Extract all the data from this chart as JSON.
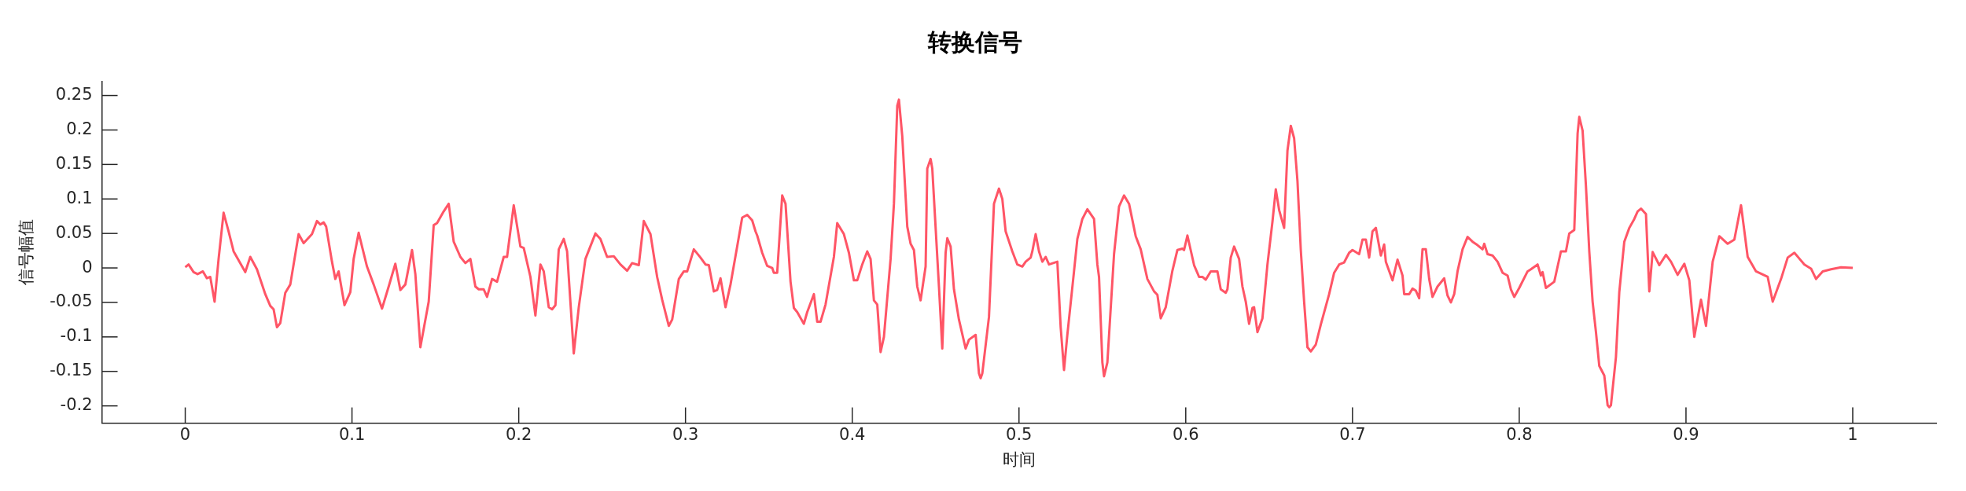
{
  "chart_data": {
    "type": "line",
    "title": "转换信号",
    "xlabel": "时间",
    "ylabel": "信号幅值",
    "xlim": [
      -0.05,
      1.05
    ],
    "xticks": [
      0,
      0.1,
      0.2,
      0.3,
      0.4,
      0.5,
      0.6,
      0.7,
      0.8,
      0.9,
      1
    ],
    "ylim": [
      -0.225,
      0.27
    ],
    "yticks": [
      -0.2,
      -0.15,
      -0.1,
      -0.05,
      0,
      0.05,
      0.1,
      0.15,
      0.2,
      0.25
    ],
    "grid": false,
    "legend": false,
    "marker": "none",
    "line_style": "solid",
    "series": [
      {
        "color": "#ff5566",
        "x": [
          0,
          0.002,
          0.005,
          0.0074,
          0.0106,
          0.013,
          0.015,
          0.0176,
          0.02,
          0.023,
          0.026,
          0.029,
          0.036,
          0.039,
          0.043,
          0.048,
          0.051,
          0.053,
          0.055,
          0.057,
          0.06,
          0.063,
          0.068,
          0.071,
          0.076,
          0.079,
          0.081,
          0.083,
          0.0845,
          0.088,
          0.09,
          0.092,
          0.0955,
          0.099,
          0.101,
          0.104,
          0.109,
          0.113,
          0.118,
          0.122,
          0.126,
          0.129,
          0.132,
          0.136,
          0.138,
          0.141,
          0.146,
          0.149,
          0.151,
          0.155,
          0.158,
          0.161,
          0.165,
          0.168,
          0.171,
          0.174,
          0.176,
          0.179,
          0.181,
          0.184,
          0.187,
          0.191,
          0.193,
          0.197,
          0.201,
          0.203,
          0.207,
          0.21,
          0.213,
          0.215,
          0.218,
          0.22,
          0.222,
          0.224,
          0.227,
          0.229,
          0.233,
          0.236,
          0.24,
          0.246,
          0.249,
          0.253,
          0.257,
          0.261,
          0.265,
          0.268,
          0.272,
          0.275,
          0.279,
          0.283,
          0.286,
          0.29,
          0.292,
          0.296,
          0.299,
          0.301,
          0.305,
          0.309,
          0.312,
          0.314,
          0.317,
          0.319,
          0.321,
          0.324,
          0.327,
          0.331,
          0.334,
          0.337,
          0.34,
          0.342,
          0.343,
          0.346,
          0.349,
          0.352,
          0.353,
          0.355,
          0.358,
          0.36,
          0.363,
          0.365,
          0.367,
          0.371,
          0.373,
          0.377,
          0.379,
          0.381,
          0.384,
          0.389,
          0.391,
          0.395,
          0.398,
          0.401,
          0.403,
          0.406,
          0.409,
          0.411,
          0.413,
          0.415,
          0.417,
          0.419,
          0.423,
          0.425,
          0.427,
          0.428,
          0.43,
          0.433,
          0.435,
          0.437,
          0.439,
          0.441,
          0.444,
          0.445,
          0.447,
          0.448,
          0.452,
          0.454,
          0.456,
          0.457,
          0.459,
          0.461,
          0.464,
          0.468,
          0.47,
          0.474,
          0.476,
          0.477,
          0.478,
          0.482,
          0.485,
          0.488,
          0.49,
          0.492,
          0.496,
          0.499,
          0.502,
          0.504,
          0.507,
          0.508,
          0.51,
          0.512,
          0.514,
          0.516,
          0.518,
          0.523,
          0.525,
          0.527,
          0.529,
          0.533,
          0.535,
          0.538,
          0.541,
          0.545,
          0.547,
          0.548,
          0.55,
          0.551,
          0.553,
          0.557,
          0.56,
          0.563,
          0.566,
          0.57,
          0.573,
          0.577,
          0.581,
          0.583,
          0.585,
          0.588,
          0.592,
          0.595,
          0.598,
          0.599,
          0.601,
          0.605,
          0.608,
          0.61,
          0.612,
          0.615,
          0.619,
          0.621,
          0.624,
          0.625,
          0.627,
          0.629,
          0.632,
          0.634,
          0.636,
          0.638,
          0.64,
          0.641,
          0.643,
          0.646,
          0.649,
          0.652,
          0.654,
          0.656,
          0.659,
          0.661,
          0.663,
          0.665,
          0.667,
          0.669,
          0.671,
          0.673,
          0.675,
          0.678,
          0.681,
          0.686,
          0.689,
          0.692,
          0.695,
          0.698,
          0.7,
          0.704,
          0.706,
          0.708,
          0.71,
          0.712,
          0.714,
          0.717,
          0.719,
          0.72,
          0.724,
          0.727,
          0.73,
          0.731,
          0.734,
          0.736,
          0.738,
          0.74,
          0.742,
          0.744,
          0.746,
          0.748,
          0.751,
          0.755,
          0.757,
          0.759,
          0.761,
          0.763,
          0.766,
          0.769,
          0.772,
          0.775,
          0.778,
          0.779,
          0.781,
          0.784,
          0.787,
          0.79,
          0.793,
          0.795,
          0.797,
          0.8,
          0.805,
          0.807,
          0.811,
          0.813,
          0.814,
          0.816,
          0.821,
          0.822,
          0.825,
          0.828,
          0.83,
          0.833,
          0.835,
          0.836,
          0.838,
          0.84,
          0.842,
          0.844,
          0.846,
          0.848,
          0.851,
          0.853,
          0.854,
          0.855,
          0.858,
          0.86,
          0.863,
          0.866,
          0.869,
          0.871,
          0.873,
          0.876,
          0.878,
          0.88,
          0.884,
          0.888,
          0.891,
          0.895,
          0.899,
          0.902,
          0.905,
          0.909,
          0.912,
          0.916,
          0.92,
          0.925,
          0.929,
          0.933,
          0.937,
          0.942,
          0.949,
          0.952,
          0.957,
          0.961,
          0.965,
          0.971,
          0.975,
          0.978,
          0.982,
          0.987,
          0.993,
          1
        ],
        "values": [
          0.001,
          0.005,
          -0.006,
          -0.009,
          -0.005,
          -0.015,
          -0.013,
          -0.049,
          0.013,
          0.08,
          0.053,
          0.024,
          -0.006,
          0.016,
          -0.002,
          -0.038,
          -0.055,
          -0.06,
          -0.086,
          -0.08,
          -0.036,
          -0.024,
          0.049,
          0.036,
          0.049,
          0.068,
          0.063,
          0.066,
          0.06,
          0.009,
          -0.016,
          -0.005,
          -0.054,
          -0.035,
          0.013,
          0.051,
          0.002,
          -0.024,
          -0.059,
          -0.027,
          0.006,
          -0.032,
          -0.024,
          0.026,
          -0.009,
          -0.115,
          -0.049,
          0.062,
          0.065,
          0.082,
          0.093,
          0.038,
          0.016,
          0.007,
          0.013,
          -0.027,
          -0.031,
          -0.031,
          -0.042,
          -0.016,
          -0.02,
          0.016,
          0.016,
          0.091,
          0.031,
          0.029,
          -0.013,
          -0.069,
          0.005,
          -0.005,
          -0.057,
          -0.06,
          -0.054,
          0.027,
          0.042,
          0.024,
          -0.124,
          -0.057,
          0.013,
          0.05,
          0.042,
          0.016,
          0.017,
          0.005,
          -0.004,
          0.007,
          0.004,
          0.068,
          0.049,
          -0.013,
          -0.046,
          -0.084,
          -0.075,
          -0.016,
          -0.005,
          -0.005,
          0.027,
          0.015,
          0.005,
          0.004,
          -0.034,
          -0.032,
          -0.015,
          -0.057,
          -0.024,
          0.031,
          0.073,
          0.077,
          0.069,
          0.053,
          0.047,
          0.022,
          0.003,
          0,
          -0.007,
          -0.007,
          0.105,
          0.093,
          -0.02,
          -0.058,
          -0.064,
          -0.081,
          -0.064,
          -0.038,
          -0.078,
          -0.078,
          -0.053,
          0.016,
          0.065,
          0.049,
          0.022,
          -0.018,
          -0.018,
          0.005,
          0.024,
          0.013,
          -0.047,
          -0.053,
          -0.122,
          -0.1,
          0.013,
          0.093,
          0.235,
          0.244,
          0.191,
          0.06,
          0.035,
          0.026,
          -0.027,
          -0.047,
          0.002,
          0.144,
          0.158,
          0.144,
          -0.027,
          -0.117,
          0.022,
          0.043,
          0.031,
          -0.031,
          -0.075,
          -0.117,
          -0.104,
          -0.097,
          -0.153,
          -0.16,
          -0.153,
          -0.071,
          0.093,
          0.115,
          0.1,
          0.053,
          0.024,
          0.005,
          0.002,
          0.009,
          0.015,
          0.024,
          0.049,
          0.024,
          0.009,
          0.016,
          0.005,
          0.009,
          -0.086,
          -0.148,
          -0.097,
          -0.005,
          0.042,
          0.071,
          0.085,
          0.071,
          0.005,
          -0.013,
          -0.137,
          -0.157,
          -0.137,
          0.02,
          0.089,
          0.105,
          0.093,
          0.046,
          0.027,
          -0.016,
          -0.034,
          -0.039,
          -0.073,
          -0.057,
          -0.004,
          0.026,
          0.028,
          0.026,
          0.047,
          0.004,
          -0.013,
          -0.013,
          -0.017,
          -0.005,
          -0.005,
          -0.031,
          -0.036,
          -0.031,
          0.015,
          0.031,
          0.013,
          -0.027,
          -0.049,
          -0.081,
          -0.058,
          -0.057,
          -0.093,
          -0.073,
          0.005,
          0.067,
          0.114,
          0.084,
          0.058,
          0.17,
          0.206,
          0.188,
          0.126,
          0.026,
          -0.049,
          -0.115,
          -0.121,
          -0.111,
          -0.082,
          -0.038,
          -0.007,
          0.005,
          0.008,
          0.022,
          0.026,
          0.02,
          0.041,
          0.041,
          0.015,
          0.053,
          0.058,
          0.018,
          0.034,
          0.009,
          -0.018,
          0.012,
          -0.011,
          -0.038,
          -0.038,
          -0.03,
          -0.033,
          -0.044,
          0.027,
          0.027,
          -0.016,
          -0.042,
          -0.027,
          -0.015,
          -0.04,
          -0.05,
          -0.038,
          -0.005,
          0.027,
          0.045,
          0.038,
          0.033,
          0.027,
          0.035,
          0.02,
          0.018,
          0.009,
          -0.007,
          -0.011,
          -0.031,
          -0.042,
          -0.029,
          -0.005,
          -0.002,
          0.005,
          -0.011,
          -0.006,
          -0.029,
          -0.02,
          -0.009,
          0.024,
          0.024,
          0.05,
          0.055,
          0.195,
          0.219,
          0.199,
          0.119,
          0.024,
          -0.049,
          -0.093,
          -0.142,
          -0.156,
          -0.199,
          -0.202,
          -0.199,
          -0.129,
          -0.035,
          0.038,
          0.058,
          0.071,
          0.082,
          0.086,
          0.078,
          -0.034,
          0.023,
          0.004,
          0.019,
          0.009,
          -0.01,
          0.006,
          -0.018,
          -0.1,
          -0.046,
          -0.084,
          0.009,
          0.046,
          0.035,
          0.041,
          0.091,
          0.016,
          -0.005,
          -0.013,
          -0.049,
          -0.016,
          0.015,
          0.022,
          0.005,
          -0.001,
          -0.016,
          -0.005,
          -0.002,
          0.001,
          0
        ]
      }
    ]
  }
}
